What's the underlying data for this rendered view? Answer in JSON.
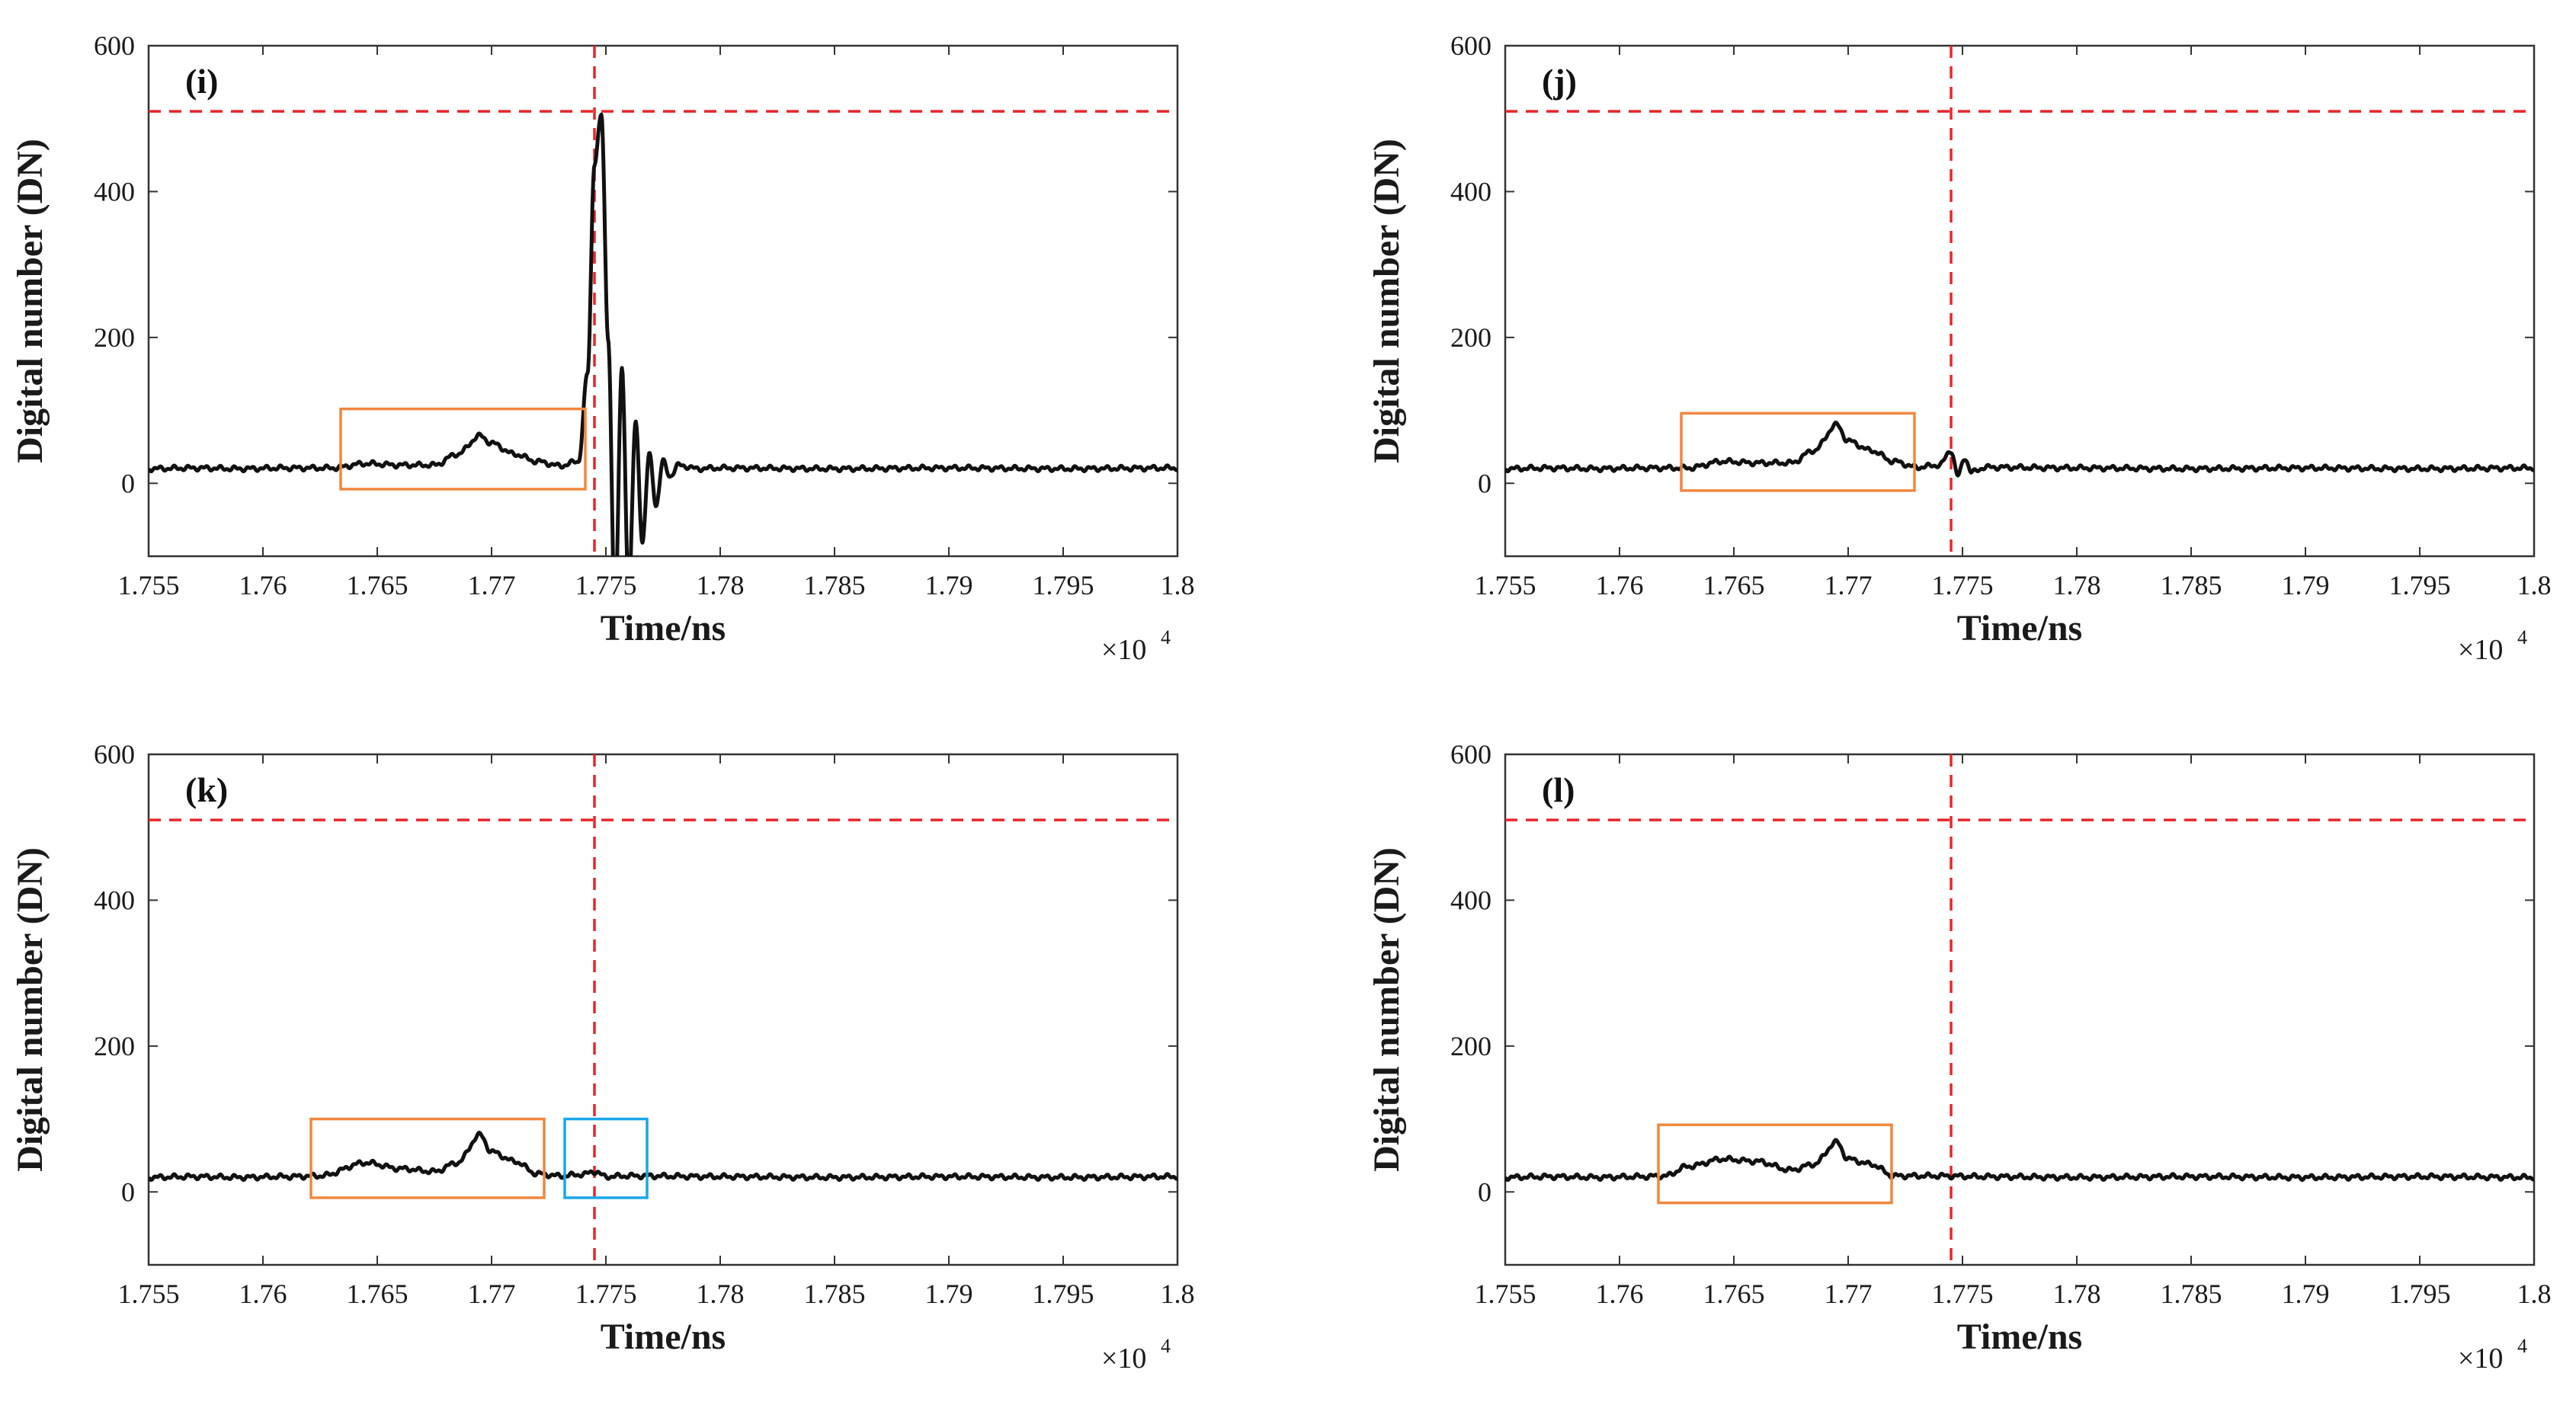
{
  "colors": {
    "signal": "#111111",
    "reference": "#e8262b",
    "orange_box": "#f0873f",
    "blue_box": "#1aa6e8",
    "axis": "#333333"
  },
  "chart_data": [
    {
      "type": "line",
      "panel_label": "(i)",
      "xlabel": "Time/ns",
      "ylabel": "Digital number (DN)",
      "x_multiplier": "×10",
      "x_multiplier_exp": "4",
      "xlim": [
        1.755,
        1.8
      ],
      "ylim": [
        -100,
        600
      ],
      "x_ticks": [
        "1.755",
        "1.76",
        "1.765",
        "1.77",
        "1.775",
        "1.78",
        "1.785",
        "1.79",
        "1.795",
        "1.8"
      ],
      "y_ticks": [
        "0",
        "200",
        "400",
        "600"
      ],
      "x_tick_values": [
        1.755,
        1.76,
        1.765,
        1.77,
        1.775,
        1.78,
        1.785,
        1.79,
        1.795,
        1.8
      ],
      "y_tick_values": [
        0,
        200,
        400,
        600
      ],
      "reference_x": 1.7745,
      "reference_y": 510,
      "series": [
        {
          "name": "waveform",
          "x": [
            1.755,
            1.757,
            1.759,
            1.761,
            1.763,
            1.7645,
            1.766,
            1.7675,
            1.7685,
            1.7695,
            1.77,
            1.771,
            1.772,
            1.773,
            1.7738,
            1.7742,
            1.7745,
            1.7748,
            1.7751,
            1.7754,
            1.7757,
            1.776,
            1.7763,
            1.7766,
            1.7769,
            1.7772,
            1.7775,
            1.7778,
            1.7782,
            1.779,
            1.78,
            1.785,
            1.79,
            1.795,
            1.8
          ],
          "y": [
            20,
            21,
            20,
            21,
            21,
            27,
            25,
            25,
            40,
            65,
            55,
            40,
            30,
            24,
            30,
            150,
            440,
            505,
            200,
            -180,
            160,
            -150,
            85,
            -80,
            40,
            -30,
            30,
            10,
            25,
            20,
            21,
            20,
            21,
            20,
            21
          ]
        }
      ],
      "boxes": [
        {
          "color": "orange",
          "x": [
            1.7634,
            1.7741
          ],
          "y": [
            -8,
            102
          ]
        }
      ]
    },
    {
      "type": "line",
      "panel_label": "(j)",
      "xlabel": "Time/ns",
      "ylabel": "Digital number (DN)",
      "x_multiplier": "×10",
      "x_multiplier_exp": "4",
      "xlim": [
        1.755,
        1.8
      ],
      "ylim": [
        -100,
        600
      ],
      "x_ticks": [
        "1.755",
        "1.76",
        "1.765",
        "1.77",
        "1.775",
        "1.78",
        "1.785",
        "1.79",
        "1.795",
        "1.8"
      ],
      "y_ticks": [
        "0",
        "200",
        "400",
        "600"
      ],
      "x_tick_values": [
        1.755,
        1.76,
        1.765,
        1.77,
        1.775,
        1.78,
        1.785,
        1.79,
        1.795,
        1.8
      ],
      "y_tick_values": [
        0,
        200,
        400,
        600
      ],
      "reference_x": 1.7745,
      "reference_y": 510,
      "series": [
        {
          "name": "waveform",
          "x": [
            1.755,
            1.757,
            1.759,
            1.761,
            1.763,
            1.7645,
            1.766,
            1.7675,
            1.7685,
            1.7695,
            1.77,
            1.771,
            1.772,
            1.773,
            1.774,
            1.7745,
            1.7748,
            1.7751,
            1.7754,
            1.776,
            1.78,
            1.785,
            1.79,
            1.795,
            1.8
          ],
          "y": [
            20,
            21,
            20,
            21,
            21,
            30,
            28,
            28,
            45,
            80,
            58,
            45,
            30,
            22,
            25,
            45,
            10,
            35,
            15,
            22,
            21,
            20,
            21,
            20,
            21
          ]
        }
      ],
      "boxes": [
        {
          "color": "orange",
          "x": [
            1.7627,
            1.7729
          ],
          "y": [
            -10,
            96
          ]
        }
      ]
    },
    {
      "type": "line",
      "panel_label": "(k)",
      "xlabel": "Time/ns",
      "ylabel": "Digital number (DN)",
      "x_multiplier": "×10",
      "x_multiplier_exp": "4",
      "xlim": [
        1.755,
        1.8
      ],
      "ylim": [
        -100,
        600
      ],
      "x_ticks": [
        "1.755",
        "1.76",
        "1.765",
        "1.77",
        "1.775",
        "1.78",
        "1.785",
        "1.79",
        "1.795",
        "1.8"
      ],
      "y_ticks": [
        "0",
        "200",
        "400",
        "600"
      ],
      "x_tick_values": [
        1.755,
        1.76,
        1.765,
        1.77,
        1.775,
        1.78,
        1.785,
        1.79,
        1.795,
        1.8
      ],
      "y_tick_values": [
        0,
        200,
        400,
        600
      ],
      "reference_x": 1.7745,
      "reference_y": 510,
      "series": [
        {
          "name": "waveform",
          "x": [
            1.755,
            1.757,
            1.759,
            1.761,
            1.7625,
            1.7645,
            1.766,
            1.7675,
            1.7685,
            1.7695,
            1.77,
            1.771,
            1.772,
            1.773,
            1.774,
            1.7745,
            1.775,
            1.776,
            1.78,
            1.785,
            1.79,
            1.795,
            1.8
          ],
          "y": [
            20,
            21,
            20,
            21,
            22,
            40,
            32,
            28,
            40,
            78,
            55,
            42,
            25,
            22,
            24,
            28,
            21,
            22,
            21,
            20,
            21,
            20,
            21
          ]
        }
      ],
      "boxes": [
        {
          "color": "orange",
          "x": [
            1.7621,
            1.7723
          ],
          "y": [
            -8,
            100
          ]
        },
        {
          "color": "blue",
          "x": [
            1.7732,
            1.7768
          ],
          "y": [
            -8,
            100
          ]
        }
      ]
    },
    {
      "type": "line",
      "panel_label": "(l)",
      "xlabel": "Time/ns",
      "ylabel": "Digital number (DN)",
      "x_multiplier": "×10",
      "x_multiplier_exp": "4",
      "xlim": [
        1.755,
        1.8
      ],
      "ylim": [
        -100,
        600
      ],
      "x_ticks": [
        "1.755",
        "1.76",
        "1.765",
        "1.77",
        "1.775",
        "1.78",
        "1.785",
        "1.79",
        "1.795",
        "1.8"
      ],
      "y_ticks": [
        "0",
        "200",
        "400",
        "600"
      ],
      "x_tick_values": [
        1.755,
        1.76,
        1.765,
        1.77,
        1.775,
        1.78,
        1.785,
        1.79,
        1.795,
        1.8
      ],
      "y_tick_values": [
        0,
        200,
        400,
        600
      ],
      "reference_x": 1.7745,
      "reference_y": 510,
      "series": [
        {
          "name": "waveform",
          "x": [
            1.755,
            1.757,
            1.759,
            1.761,
            1.762,
            1.763,
            1.7645,
            1.766,
            1.7675,
            1.7685,
            1.7695,
            1.77,
            1.771,
            1.772,
            1.774,
            1.776,
            1.78,
            1.785,
            1.79,
            1.795,
            1.8
          ],
          "y": [
            20,
            21,
            20,
            21,
            22,
            35,
            45,
            42,
            30,
            38,
            68,
            45,
            38,
            22,
            22,
            21,
            20,
            21,
            20,
            21,
            20
          ]
        }
      ],
      "boxes": [
        {
          "color": "orange",
          "x": [
            1.7617,
            1.7719
          ],
          "y": [
            -15,
            92
          ]
        }
      ]
    }
  ]
}
